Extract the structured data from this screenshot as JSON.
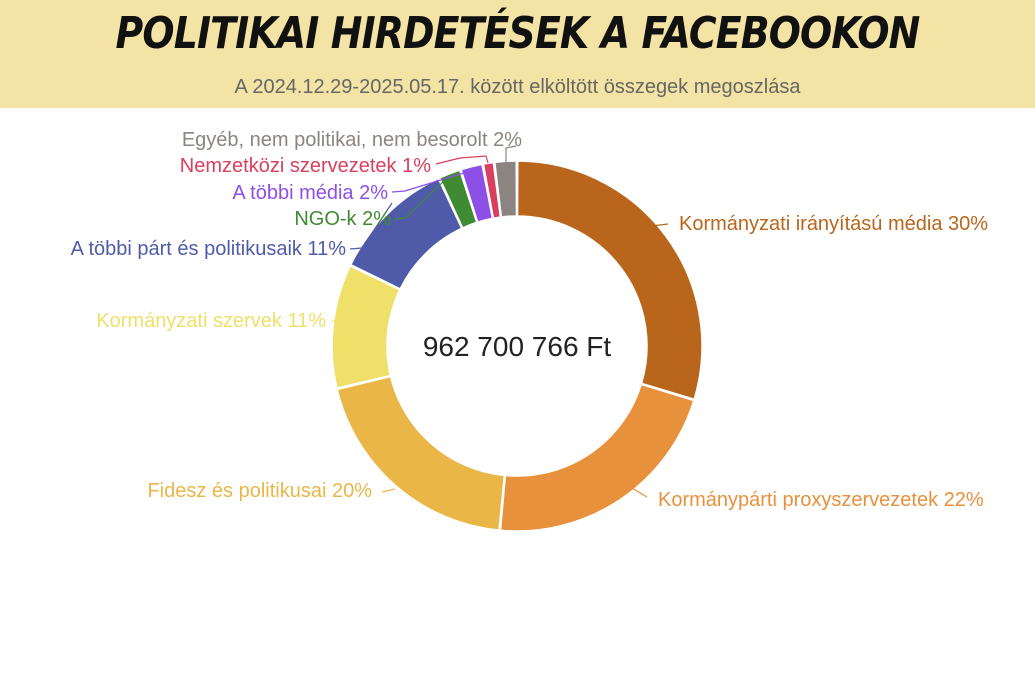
{
  "header": {
    "title": "POLITIKAI HIRDETÉSEK A FACEBOOKON",
    "subtitle": "A 2024.12.29-2025.05.17. között elköltött összegek megoszlása"
  },
  "chart_data": {
    "type": "pie",
    "variant": "donut",
    "center_label": "962 700 766 Ft",
    "slices": [
      {
        "label": "Kormányzati irányítású média 30%",
        "value": 30,
        "color": "#b9661c"
      },
      {
        "label": "Kormánypárti proxyszervezetek 22%",
        "value": 22,
        "color": "#e8913c"
      },
      {
        "label": "Fidesz és politikusai 20%",
        "value": 20,
        "color": "#ebb648"
      },
      {
        "label": "Kormányzati szervek 11%",
        "value": 11,
        "color": "#efe06a"
      },
      {
        "label": "A többi párt és politikusaik 11%",
        "value": 11,
        "color": "#4f5ba8"
      },
      {
        "label": "NGO-k 2%",
        "value": 2,
        "color": "#3f8a32"
      },
      {
        "label": "A többi média 2%",
        "value": 2,
        "color": "#8d4fe6"
      },
      {
        "label": "Nemzetközi szervezetek 1%",
        "value": 1,
        "color": "#d9405f"
      },
      {
        "label": "Egyéb, nem politikai, nem besorolt 2%",
        "value": 2,
        "color": "#8b8480"
      }
    ],
    "legend": "none",
    "grid": false
  }
}
